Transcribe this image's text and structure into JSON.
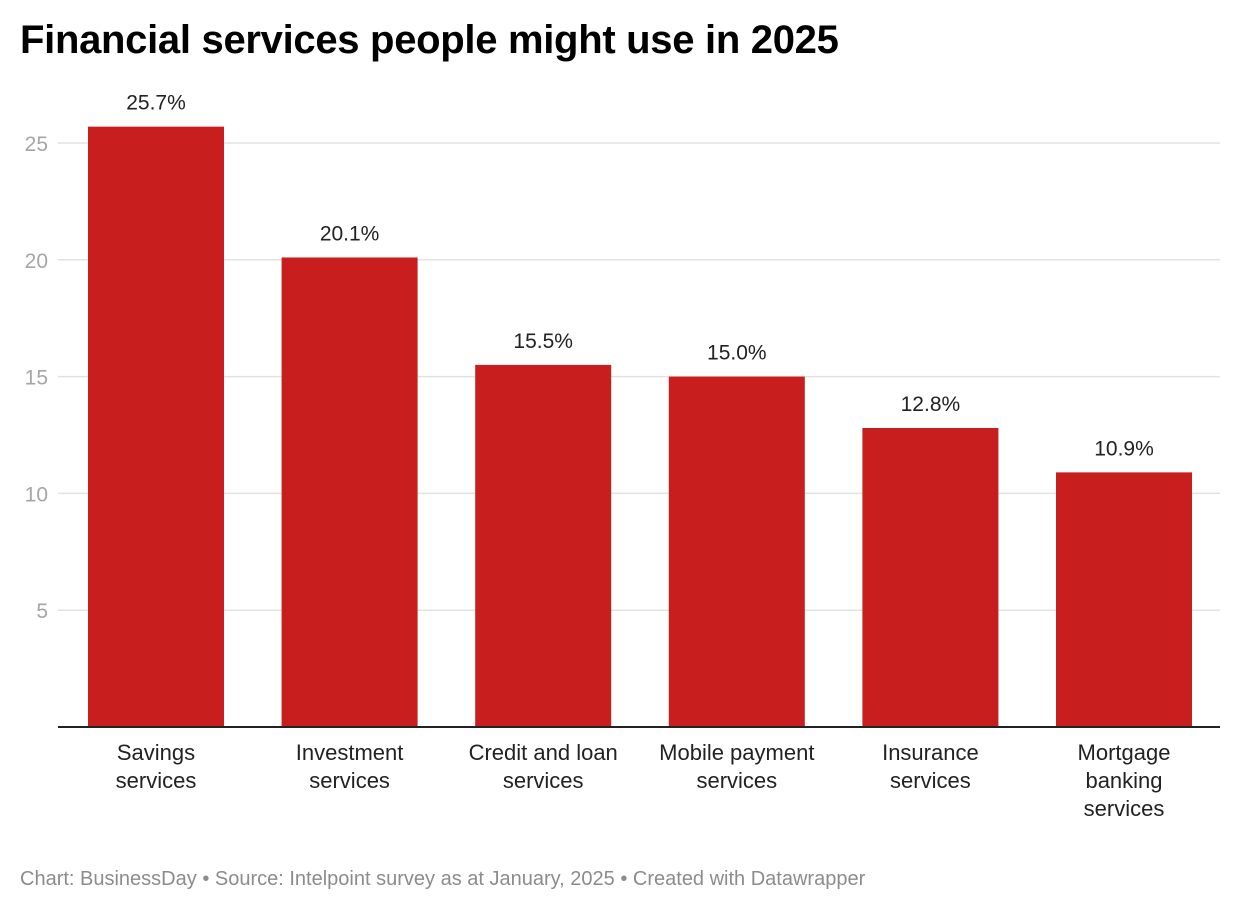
{
  "title": "Financial services people might use in 2025",
  "footer": {
    "chart_credit": "Chart: BusinessDay",
    "separator": "•",
    "source": "Source: Intelpoint survey as at January, 2025",
    "created_with": "Created with Datawrapper"
  },
  "colors": {
    "bar": "#c81e1e",
    "grid": "#e2e2e2",
    "axis": "#222222",
    "tick_text": "#a6a6a6"
  },
  "chart_data": {
    "type": "bar",
    "title": "Financial services people might use in 2025",
    "xlabel": "",
    "ylabel": "",
    "ylim": [
      0,
      27.5
    ],
    "yticks": [
      5,
      10,
      15,
      20,
      25
    ],
    "grid": true,
    "value_suffix": "%",
    "categories": [
      [
        "Savings",
        "services"
      ],
      [
        "Investment",
        "services"
      ],
      [
        "Credit and loan",
        "services"
      ],
      [
        "Mobile payment",
        "services"
      ],
      [
        "Insurance",
        "services"
      ],
      [
        "Mortgage",
        "banking",
        "services"
      ]
    ],
    "values": [
      25.7,
      20.1,
      15.5,
      15.0,
      12.8,
      10.9
    ],
    "value_labels": [
      "25.7%",
      "20.1%",
      "15.5%",
      "15.0%",
      "12.8%",
      "10.9%"
    ]
  }
}
